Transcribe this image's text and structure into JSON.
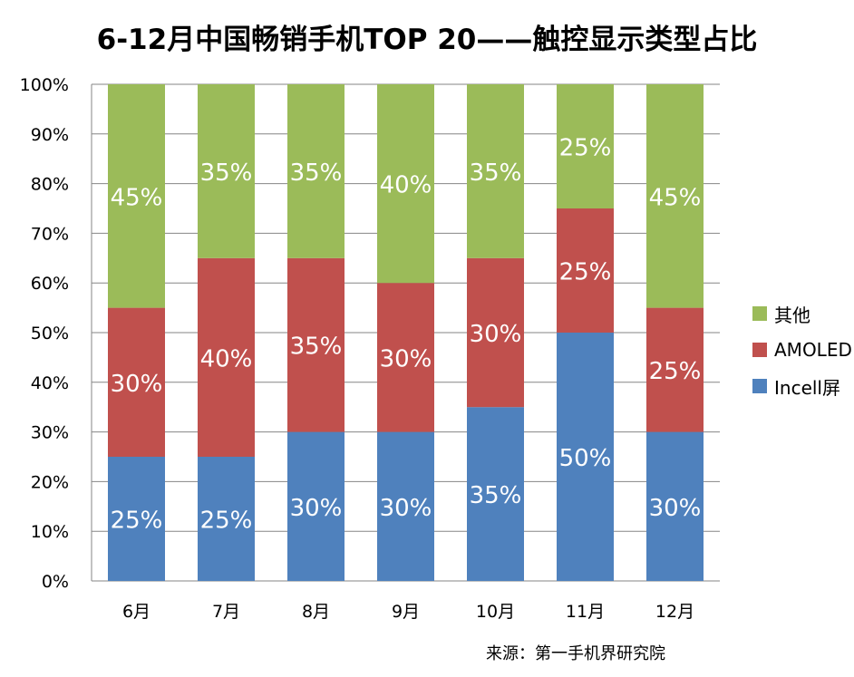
{
  "chart_data": {
    "type": "bar",
    "stacked": true,
    "title": "6-12月中国畅销手机TOP 20——触控显示类型占比",
    "categories": [
      "6月",
      "7月",
      "8月",
      "9月",
      "10月",
      "11月",
      "12月"
    ],
    "series": [
      {
        "name": "Incell屏",
        "color": "#4F81BD",
        "values": [
          25,
          25,
          30,
          30,
          35,
          50,
          30
        ],
        "labels": [
          "25%",
          "25%",
          "30%",
          "30%",
          "35%",
          "50%",
          "30%"
        ]
      },
      {
        "name": "AMOLED",
        "color": "#C0504D",
        "values": [
          30,
          40,
          35,
          30,
          30,
          25,
          25
        ],
        "labels": [
          "30%",
          "40%",
          "35%",
          "30%",
          "30%",
          "25%",
          "25%"
        ]
      },
      {
        "name": "其他",
        "color": "#9BBB59",
        "values": [
          45,
          35,
          35,
          40,
          35,
          25,
          45
        ],
        "labels": [
          "45%",
          "35%",
          "35%",
          "40%",
          "35%",
          "25%",
          "45%"
        ]
      }
    ],
    "yticks": [
      "0%",
      "10%",
      "20%",
      "30%",
      "40%",
      "50%",
      "60%",
      "70%",
      "80%",
      "90%",
      "100%"
    ],
    "ylim": [
      0,
      100
    ],
    "xlabel": "",
    "ylabel": "",
    "grid": true,
    "legend_position": "right",
    "legend": [
      "其他",
      "AMOLED",
      "Incell屏"
    ]
  },
  "source": "来源：第一手机界研究院"
}
